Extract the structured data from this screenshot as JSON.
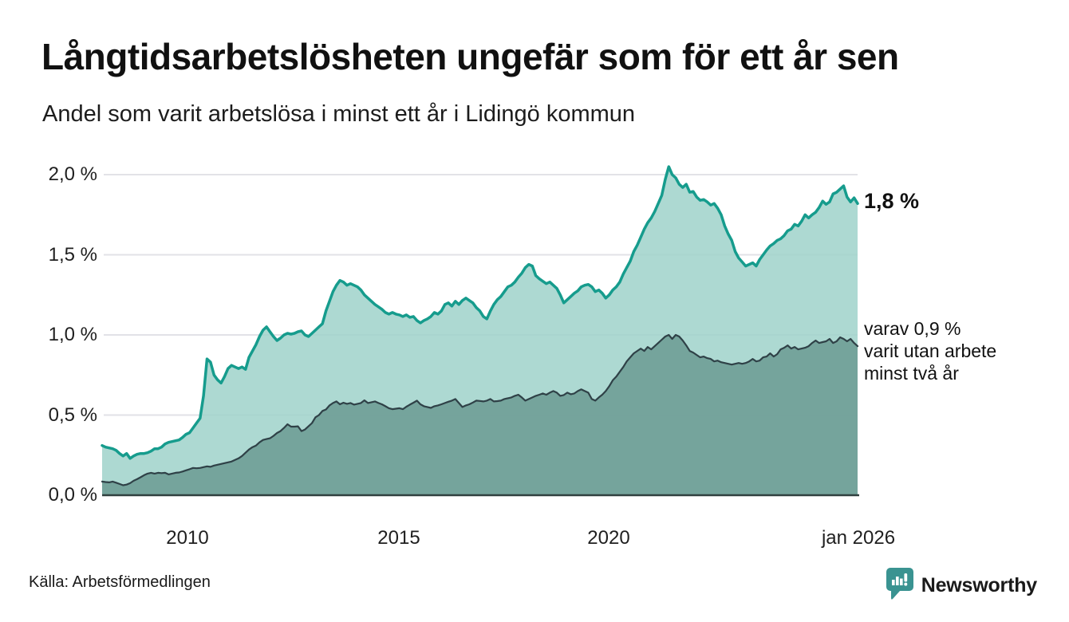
{
  "header": {
    "title": "Långtidsarbetslösheten ungefär som för ett år sen",
    "subtitle": "Andel som varit arbetslösa i minst ett år i Lidingö kommun"
  },
  "annotations": {
    "end_value_label": "1,8 %",
    "secondary_note_lines": [
      "varav 0,9 %",
      "varit utan arbete",
      "minst två år"
    ]
  },
  "footer": {
    "source": "Källa: Arbetsförmedlingen",
    "brand": "Newsworthy"
  },
  "colors": {
    "title_text": "#111111",
    "gridline": "#e2e2e7",
    "axis_line": "#30403f",
    "brand_teal": "#338e8c",
    "series_main_stroke": "#169c8d",
    "series_main_fill": "#9fd2ca",
    "series_sub_stroke": "#2f4147",
    "series_sub_fill": "#6f9d96"
  },
  "chart_data": {
    "type": "area",
    "title": "Andel som varit arbetslösa i minst ett år i Lidingö kommun",
    "x_start": "2008-01",
    "x_end": "2026-01",
    "x_interval": "monthly",
    "ylim": [
      0,
      2.1
    ],
    "grid": true,
    "x_axis": {
      "labels": [
        "2010",
        "2015",
        "2020",
        "jan 2026"
      ],
      "years": [
        2010,
        2015,
        2020,
        2026
      ]
    },
    "y_axis": {
      "labels": [
        "2,0 %",
        "1,5 %",
        "1,0 %",
        "0,5 %",
        "0,0 %"
      ],
      "values": [
        2.0,
        1.5,
        1.0,
        0.5,
        0.0
      ],
      "unit": "%"
    },
    "series": [
      {
        "name": "Arbetslösa minst ett år",
        "end_value": 1.8,
        "color": "#169c8d",
        "fill": "#9fd2ca",
        "fill_opacity": 0.85,
        "stroke_width": 3.5,
        "values": [
          0.31,
          0.3,
          0.295,
          0.29,
          0.28,
          0.26,
          0.245,
          0.26,
          0.23,
          0.245,
          0.255,
          0.26,
          0.26,
          0.265,
          0.275,
          0.29,
          0.29,
          0.3,
          0.32,
          0.33,
          0.335,
          0.34,
          0.345,
          0.36,
          0.38,
          0.39,
          0.42,
          0.45,
          0.48,
          0.62,
          0.85,
          0.83,
          0.75,
          0.72,
          0.7,
          0.74,
          0.79,
          0.81,
          0.8,
          0.79,
          0.8,
          0.785,
          0.86,
          0.9,
          0.94,
          0.99,
          1.03,
          1.05,
          1.02,
          0.99,
          0.965,
          0.98,
          1.0,
          1.01,
          1.005,
          1.01,
          1.02,
          1.025,
          1.0,
          0.99,
          1.01,
          1.03,
          1.05,
          1.07,
          1.15,
          1.21,
          1.27,
          1.31,
          1.34,
          1.33,
          1.31,
          1.32,
          1.31,
          1.3,
          1.28,
          1.25,
          1.23,
          1.21,
          1.19,
          1.175,
          1.16,
          1.14,
          1.13,
          1.14,
          1.13,
          1.125,
          1.115,
          1.125,
          1.11,
          1.115,
          1.09,
          1.075,
          1.09,
          1.1,
          1.115,
          1.14,
          1.13,
          1.15,
          1.19,
          1.2,
          1.18,
          1.21,
          1.19,
          1.215,
          1.23,
          1.215,
          1.2,
          1.17,
          1.15,
          1.115,
          1.1,
          1.15,
          1.19,
          1.22,
          1.24,
          1.27,
          1.3,
          1.31,
          1.33,
          1.36,
          1.385,
          1.42,
          1.44,
          1.43,
          1.37,
          1.35,
          1.335,
          1.32,
          1.33,
          1.31,
          1.29,
          1.25,
          1.2,
          1.22,
          1.24,
          1.26,
          1.275,
          1.3,
          1.31,
          1.315,
          1.3,
          1.27,
          1.28,
          1.26,
          1.23,
          1.25,
          1.28,
          1.3,
          1.33,
          1.38,
          1.42,
          1.46,
          1.52,
          1.56,
          1.61,
          1.66,
          1.7,
          1.73,
          1.77,
          1.82,
          1.87,
          1.97,
          2.05,
          2.0,
          1.98,
          1.94,
          1.92,
          1.94,
          1.89,
          1.895,
          1.86,
          1.84,
          1.845,
          1.83,
          1.81,
          1.82,
          1.79,
          1.75,
          1.68,
          1.63,
          1.59,
          1.52,
          1.48,
          1.455,
          1.43,
          1.44,
          1.45,
          1.43,
          1.47,
          1.5,
          1.53,
          1.555,
          1.57,
          1.59,
          1.6,
          1.62,
          1.65,
          1.66,
          1.69,
          1.68,
          1.71,
          1.75,
          1.73,
          1.75,
          1.765,
          1.795,
          1.835,
          1.815,
          1.83,
          1.88,
          1.89,
          1.91,
          1.93,
          1.86,
          1.83,
          1.855,
          1.82
        ]
      },
      {
        "name": "varav arbetslösa minst två år",
        "end_value": 0.9,
        "color": "#2f4147",
        "fill": "#6f9d96",
        "fill_opacity": 0.9,
        "stroke_width": 2.2,
        "values": [
          0.085,
          0.082,
          0.08,
          0.085,
          0.078,
          0.07,
          0.062,
          0.066,
          0.075,
          0.09,
          0.1,
          0.112,
          0.125,
          0.135,
          0.14,
          0.135,
          0.14,
          0.138,
          0.14,
          0.13,
          0.135,
          0.14,
          0.142,
          0.148,
          0.155,
          0.162,
          0.17,
          0.168,
          0.17,
          0.175,
          0.18,
          0.177,
          0.185,
          0.19,
          0.195,
          0.2,
          0.205,
          0.21,
          0.22,
          0.23,
          0.245,
          0.265,
          0.285,
          0.3,
          0.31,
          0.33,
          0.345,
          0.35,
          0.355,
          0.37,
          0.388,
          0.4,
          0.42,
          0.443,
          0.428,
          0.428,
          0.43,
          0.4,
          0.41,
          0.43,
          0.45,
          0.486,
          0.5,
          0.526,
          0.535,
          0.56,
          0.575,
          0.585,
          0.567,
          0.577,
          0.57,
          0.575,
          0.565,
          0.57,
          0.575,
          0.592,
          0.575,
          0.58,
          0.585,
          0.575,
          0.567,
          0.555,
          0.543,
          0.537,
          0.54,
          0.543,
          0.537,
          0.552,
          0.565,
          0.577,
          0.59,
          0.567,
          0.555,
          0.55,
          0.545,
          0.555,
          0.56,
          0.567,
          0.575,
          0.583,
          0.59,
          0.6,
          0.575,
          0.55,
          0.56,
          0.567,
          0.578,
          0.59,
          0.588,
          0.585,
          0.59,
          0.6,
          0.585,
          0.587,
          0.59,
          0.6,
          0.605,
          0.61,
          0.62,
          0.627,
          0.61,
          0.59,
          0.6,
          0.61,
          0.62,
          0.627,
          0.635,
          0.627,
          0.64,
          0.65,
          0.64,
          0.62,
          0.625,
          0.64,
          0.63,
          0.635,
          0.65,
          0.66,
          0.65,
          0.64,
          0.6,
          0.59,
          0.61,
          0.627,
          0.65,
          0.68,
          0.717,
          0.74,
          0.77,
          0.8,
          0.835,
          0.86,
          0.885,
          0.9,
          0.915,
          0.9,
          0.925,
          0.91,
          0.93,
          0.95,
          0.97,
          0.99,
          1.0,
          0.975,
          1.0,
          0.99,
          0.965,
          0.935,
          0.9,
          0.89,
          0.875,
          0.86,
          0.865,
          0.855,
          0.85,
          0.835,
          0.84,
          0.83,
          0.825,
          0.82,
          0.815,
          0.82,
          0.825,
          0.82,
          0.825,
          0.835,
          0.85,
          0.835,
          0.84,
          0.86,
          0.865,
          0.885,
          0.865,
          0.88,
          0.91,
          0.92,
          0.935,
          0.915,
          0.925,
          0.91,
          0.915,
          0.92,
          0.93,
          0.95,
          0.965,
          0.95,
          0.955,
          0.96,
          0.975,
          0.95,
          0.96,
          0.985,
          0.975,
          0.96,
          0.975,
          0.95,
          0.93
        ]
      }
    ]
  }
}
